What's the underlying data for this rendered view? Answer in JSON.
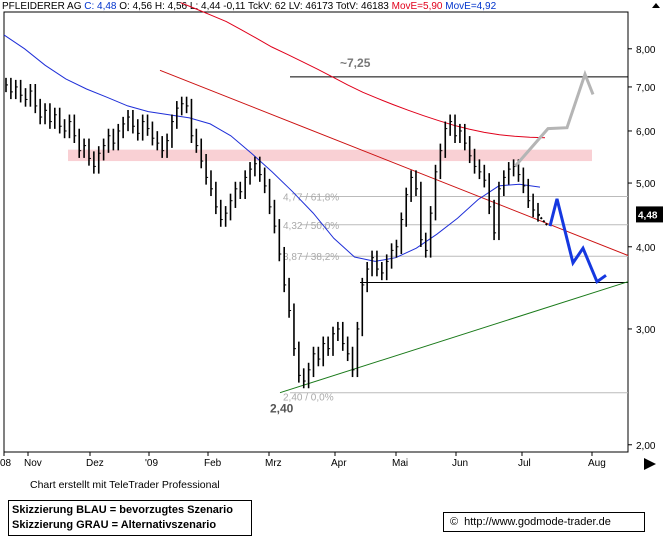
{
  "header": {
    "name": "PFLEIDERER AG",
    "c_label": "C: 4,48",
    "o_label": "O: 4,56",
    "h_label": "H: 4,56",
    "l_label": "L: 4,44",
    "chg_label": "-0,11",
    "tckv_label": "TckV: 62",
    "lv_label": "LV: 46173",
    "totv_label": "TotV: 46183",
    "move_red": "MovE=5,90",
    "move_blue": "MovE=4,92"
  },
  "credit": "Chart erstellt mit TeleTrader Professional",
  "legend": {
    "line1": "Skizzierung BLAU = bevorzugtes Szenario",
    "line2": "Skizzierung GRAU = Alternativszenario"
  },
  "source": {
    "copyright": "©",
    "url": "http://www.godmode-trader.de"
  },
  "chart_data": {
    "type": "line",
    "scale": "log",
    "ylim": [
      1.95,
      9.1
    ],
    "y_ticks": [
      {
        "v": 2.0,
        "label": "2,00"
      },
      {
        "v": 3.0,
        "label": "3,00"
      },
      {
        "v": 4.0,
        "label": "4,00"
      },
      {
        "v": 5.0,
        "label": "5,00"
      },
      {
        "v": 6.0,
        "label": "6,00"
      },
      {
        "v": 7.0,
        "label": "7,00"
      },
      {
        "v": 8.0,
        "label": "8,00"
      }
    ],
    "x_ticks": [
      "08",
      "Nov",
      "Dez",
      "'09",
      "Feb",
      "Mrz",
      "Apr",
      "Mai",
      "Jun",
      "Jul",
      "Aug"
    ],
    "last_price": {
      "value": 4.48,
      "label": "4,48"
    },
    "levels": [
      {
        "value": 7.25,
        "label": "~7,25"
      },
      {
        "value": 4.77,
        "label": "4,77 / 61,8%"
      },
      {
        "value": 4.32,
        "label": "4,32 / 50,0%"
      },
      {
        "value": 3.87,
        "label": "3,87 / 38,2%"
      },
      {
        "value": 2.4,
        "label": "2,40 / 0,0%"
      },
      {
        "value": 3.53,
        "label": ""
      },
      {
        "value": 2.4,
        "label": "2,40"
      }
    ],
    "resistance_zone": [
      5.4,
      5.62
    ],
    "close": [
      7.05,
      6.88,
      7.0,
      6.8,
      6.7,
      6.9,
      6.55,
      6.3,
      6.45,
      6.2,
      6.35,
      6.1,
      6.0,
      6.2,
      5.9,
      5.6,
      5.7,
      5.45,
      5.3,
      5.55,
      5.7,
      5.9,
      5.75,
      6.0,
      6.15,
      6.3,
      6.1,
      5.95,
      6.2,
      6.05,
      5.85,
      5.75,
      5.6,
      5.8,
      6.2,
      6.5,
      6.6,
      6.55,
      5.9,
      5.7,
      5.4,
      5.1,
      4.9,
      4.6,
      4.4,
      4.5,
      4.7,
      4.9,
      4.85,
      5.1,
      5.25,
      5.35,
      5.15,
      4.95,
      4.6,
      4.3,
      3.9,
      3.5,
      3.2,
      2.8,
      2.55,
      2.5,
      2.6,
      2.75,
      2.7,
      2.85,
      2.8,
      2.95,
      3.0,
      2.85,
      2.75,
      2.6,
      3.0,
      3.5,
      3.7,
      3.85,
      3.7,
      3.65,
      3.8,
      3.95,
      4.0,
      4.4,
      4.8,
      5.1,
      4.9,
      4.1,
      3.95,
      4.5,
      5.2,
      5.6,
      6.05,
      6.2,
      5.9,
      6.0,
      5.75,
      5.5,
      5.3,
      5.2,
      5.05,
      4.6,
      4.2,
      4.9,
      5.1,
      5.25,
      5.3,
      5.15,
      4.95,
      4.7,
      4.55,
      4.48
    ],
    "series": [
      {
        "name": "MovE=5,90",
        "color": "#e0001b",
        "values": [
          null,
          null,
          null,
          null,
          9.4,
          9.2,
          9.0,
          8.8,
          8.55,
          8.3,
          8.05,
          7.85,
          7.65,
          7.45,
          7.25,
          7.05,
          6.87,
          6.72,
          6.58,
          6.45,
          6.33,
          6.22,
          6.12,
          6.04,
          5.97,
          5.92,
          5.89,
          5.87,
          5.86
        ]
      },
      {
        "name": "MovE=4,92",
        "color": "#1f2fd8",
        "values": [
          8.4,
          8.0,
          7.55,
          7.2,
          6.95,
          6.75,
          6.55,
          6.42,
          6.35,
          6.28,
          6.15,
          5.9,
          5.55,
          5.2,
          4.85,
          4.5,
          4.12,
          3.86,
          3.8,
          3.85,
          3.98,
          4.18,
          4.42,
          4.72,
          4.95,
          4.98,
          4.93
        ]
      }
    ],
    "trendlines": [
      {
        "name": "red-downtrend",
        "color": "#cc1111",
        "points": [
          [
            0,
            7.42
          ],
          [
            1,
            3.88
          ]
        ]
      },
      {
        "name": "green-uptrend",
        "color": "#1a7a1a",
        "points": [
          [
            0,
            2.4
          ],
          [
            1,
            3.54
          ]
        ]
      }
    ],
    "projection_blue": [
      4.48,
      4.3,
      4.73,
      3.78,
      3.98,
      3.54,
      3.62
    ],
    "projection_gray": [
      5.3,
      6.05,
      6.07,
      7.32,
      6.82
    ]
  }
}
